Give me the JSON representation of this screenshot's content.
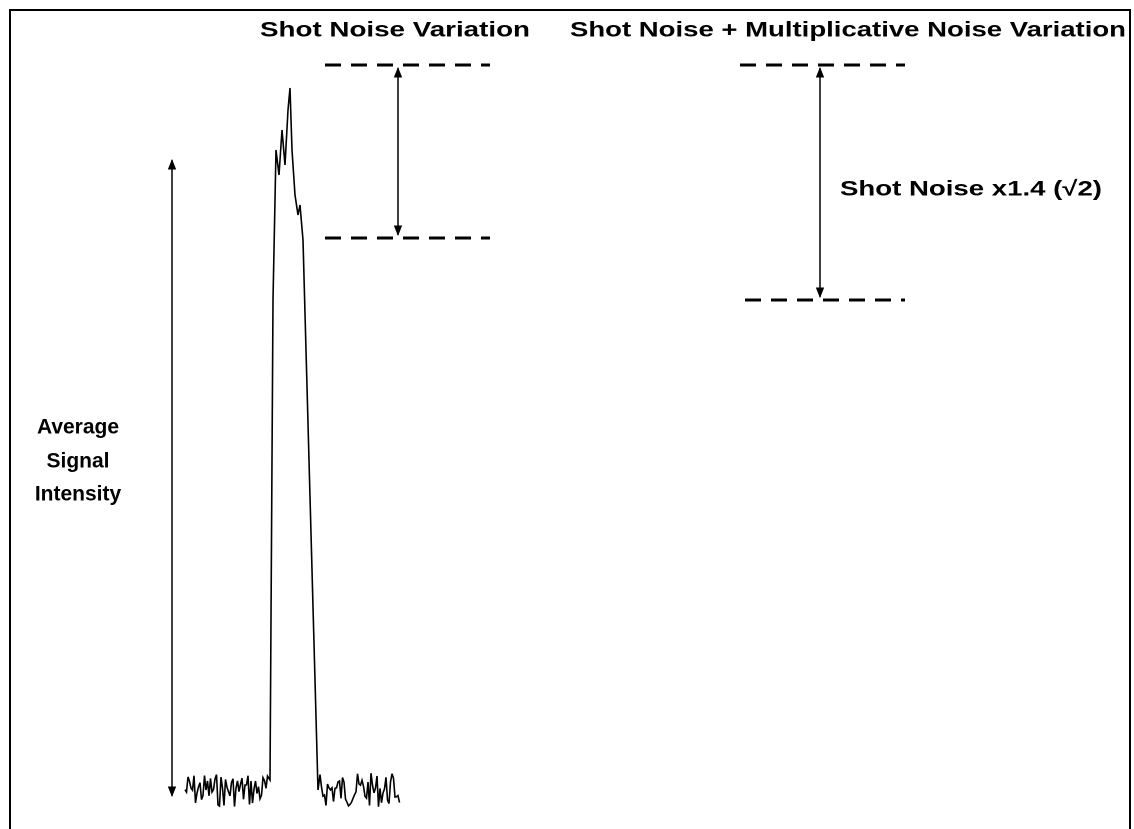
{
  "labels": {
    "left_title": "Shot Noise Variation",
    "right_title": "Shot Noise + Multiplicative Noise Variation",
    "right_annotation": "Shot Noise x1.4 (√2)",
    "signal_label": [
      "Average",
      "Signal",
      "Intensity"
    ]
  }
}
